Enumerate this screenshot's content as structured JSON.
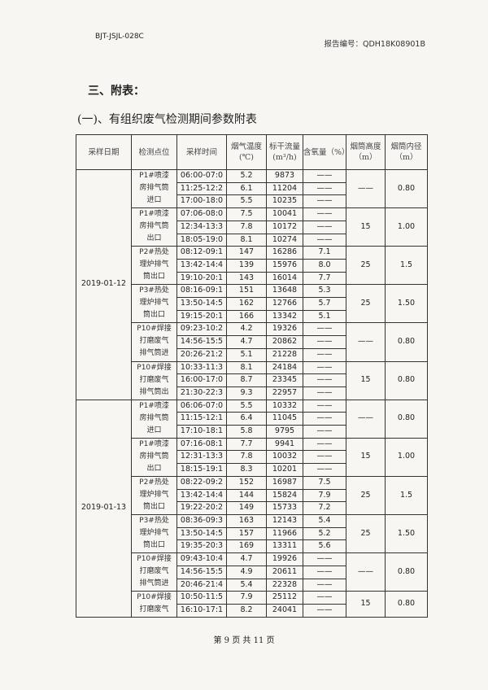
{
  "header": {
    "form_code": "BJT-JSJL-028C",
    "report_no": "报告编号：QDH18K08901B"
  },
  "section_title": "三、附表：",
  "subtitle": "(一)、有组织废气检测期间参数附表",
  "table": {
    "columns": [
      "采样日期",
      "检测点位",
      "采样时间",
      "烟气温度(℃)",
      "标干流量(m³/h)",
      "含氧量（%）",
      "烟筒高度（m）",
      "烟筒内径（m）"
    ],
    "groups": [
      {
        "date": "2019-01-12",
        "stations": [
          {
            "name": [
              "P1#喷漆",
              "房排气筒",
              "进口"
            ],
            "height": "——",
            "diameter": "0.80",
            "rows": [
              [
                "06:00-07:0",
                "5.2",
                "9873",
                "——"
              ],
              [
                "11:25-12:2",
                "6.1",
                "11204",
                "——"
              ],
              [
                "17:00-18:0",
                "5.5",
                "10235",
                "——"
              ]
            ]
          },
          {
            "name": [
              "P1#喷漆",
              "房排气筒",
              "出口"
            ],
            "height": "15",
            "diameter": "1.00",
            "rows": [
              [
                "07:06-08:0",
                "7.5",
                "10041",
                "——"
              ],
              [
                "12:34-13:3",
                "7.8",
                "10172",
                "——"
              ],
              [
                "18:05-19:0",
                "8.1",
                "10274",
                "——"
              ]
            ]
          },
          {
            "name": [
              "P2#热处",
              "理炉排气",
              "筒出口"
            ],
            "height": "25",
            "diameter": "1.5",
            "rows": [
              [
                "08:12-09:1",
                "147",
                "16286",
                "7.1"
              ],
              [
                "13:42-14:4",
                "139",
                "15976",
                "8.0"
              ],
              [
                "19:10-20:1",
                "143",
                "16014",
                "7.7"
              ]
            ]
          },
          {
            "name": [
              "P3#热处",
              "理炉排气",
              "筒出口"
            ],
            "height": "25",
            "diameter": "1.50",
            "rows": [
              [
                "08:16-09:1",
                "151",
                "13648",
                "5.3"
              ],
              [
                "13:50-14:5",
                "162",
                "12766",
                "5.7"
              ],
              [
                "19:15-20:1",
                "166",
                "13342",
                "5.1"
              ]
            ]
          },
          {
            "name": [
              "P10#焊接",
              "打磨废气",
              "排气筒进"
            ],
            "height": "——",
            "diameter": "0.80",
            "rows": [
              [
                "09:23-10:2",
                "4.2",
                "19326",
                "——"
              ],
              [
                "14:56-15:5",
                "4.7",
                "20862",
                "——"
              ],
              [
                "20:26-21:2",
                "5.1",
                "21228",
                "——"
              ]
            ]
          },
          {
            "name": [
              "P10#焊接",
              "打磨废气",
              "排气筒出"
            ],
            "height": "15",
            "diameter": "0.80",
            "rows": [
              [
                "10:33-11:3",
                "8.1",
                "24184",
                "——"
              ],
              [
                "16:00-17:0",
                "8.7",
                "23345",
                "——"
              ],
              [
                "21:30-22:3",
                "9.3",
                "22957",
                "——"
              ]
            ]
          }
        ]
      },
      {
        "date": "2019-01-13",
        "stations": [
          {
            "name": [
              "P1#喷漆",
              "房排气筒",
              "进口"
            ],
            "height": "——",
            "diameter": "0.80",
            "rows": [
              [
                "06:06-07:0",
                "5.5",
                "10332",
                "——"
              ],
              [
                "11:15-12:1",
                "6.4",
                "11045",
                "——"
              ],
              [
                "17:10-18:1",
                "5.8",
                "9795",
                "——"
              ]
            ]
          },
          {
            "name": [
              "P1#喷漆",
              "房排气筒",
              "出口"
            ],
            "height": "15",
            "diameter": "1.00",
            "rows": [
              [
                "07:16-08:1",
                "7.7",
                "9941",
                "——"
              ],
              [
                "12:31-13:3",
                "7.8",
                "10032",
                "——"
              ],
              [
                "18:15-19:1",
                "8.3",
                "10201",
                "——"
              ]
            ]
          },
          {
            "name": [
              "P2#热处",
              "理炉排气",
              "筒出口"
            ],
            "height": "25",
            "diameter": "1.5",
            "rows": [
              [
                "08:22-09:2",
                "152",
                "16987",
                "7.5"
              ],
              [
                "13:42-14:4",
                "144",
                "15824",
                "7.9"
              ],
              [
                "19:22-20:2",
                "149",
                "15733",
                "7.2"
              ]
            ]
          },
          {
            "name": [
              "P3#热处",
              "理炉排气",
              "筒出口"
            ],
            "height": "25",
            "diameter": "1.50",
            "rows": [
              [
                "08:36-09:3",
                "163",
                "12143",
                "5.4"
              ],
              [
                "13:50-14:5",
                "157",
                "11966",
                "5.2"
              ],
              [
                "19:35-20:3",
                "169",
                "13311",
                "5.6"
              ]
            ]
          },
          {
            "name": [
              "P10#焊接",
              "打磨废气",
              "排气筒进"
            ],
            "height": "——",
            "diameter": "0.80",
            "rows": [
              [
                "09:43-10:4",
                "4.7",
                "19926",
                "——"
              ],
              [
                "14:56-15:5",
                "4.9",
                "20611",
                "——"
              ],
              [
                "20:46-21:4",
                "5.4",
                "22328",
                "——"
              ]
            ]
          },
          {
            "name": [
              "P10#焊接",
              "打磨废气"
            ],
            "height": "15",
            "diameter": "0.80",
            "rows": [
              [
                "10:50-11:5",
                "7.9",
                "25112",
                "——"
              ],
              [
                "16:10-17:1",
                "8.2",
                "24041",
                "——"
              ]
            ]
          }
        ]
      }
    ]
  },
  "footer": {
    "page": "第 9 页 共 11 页"
  }
}
